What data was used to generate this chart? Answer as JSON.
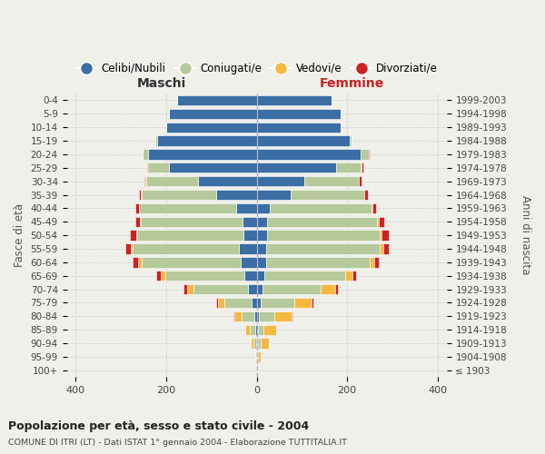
{
  "age_groups": [
    "100+",
    "95-99",
    "90-94",
    "85-89",
    "80-84",
    "75-79",
    "70-74",
    "65-69",
    "60-64",
    "55-59",
    "50-54",
    "45-49",
    "40-44",
    "35-39",
    "30-34",
    "25-29",
    "20-24",
    "15-19",
    "10-14",
    "5-9",
    "0-4"
  ],
  "birth_years": [
    "≤ 1903",
    "1904-1908",
    "1909-1913",
    "1914-1918",
    "1919-1923",
    "1924-1928",
    "1929-1933",
    "1934-1938",
    "1939-1943",
    "1944-1948",
    "1949-1953",
    "1954-1958",
    "1959-1963",
    "1964-1968",
    "1969-1973",
    "1974-1978",
    "1979-1983",
    "1984-1988",
    "1989-1993",
    "1994-1998",
    "1999-2003"
  ],
  "colors": {
    "celibi": "#3a6ea5",
    "coniugati": "#b5c99a",
    "vedovi": "#f5b942",
    "divorziati": "#cc2222"
  },
  "maschi": {
    "celibi": [
      0,
      1,
      2,
      4,
      6,
      12,
      20,
      28,
      35,
      40,
      30,
      32,
      45,
      90,
      130,
      195,
      240,
      220,
      200,
      195,
      175
    ],
    "coniugati": [
      0,
      1,
      6,
      12,
      28,
      60,
      120,
      175,
      220,
      235,
      235,
      225,
      215,
      165,
      115,
      45,
      12,
      4,
      0,
      0,
      0
    ],
    "vedovi": [
      0,
      2,
      5,
      10,
      15,
      14,
      14,
      9,
      7,
      4,
      2,
      2,
      1,
      1,
      1,
      1,
      0,
      0,
      0,
      0,
      0
    ],
    "divorziati": [
      0,
      0,
      0,
      0,
      2,
      4,
      7,
      10,
      12,
      12,
      14,
      9,
      8,
      5,
      3,
      2,
      1,
      0,
      0,
      0,
      0
    ]
  },
  "femmine": {
    "celibi": [
      0,
      1,
      2,
      3,
      4,
      8,
      12,
      16,
      20,
      20,
      22,
      22,
      28,
      75,
      105,
      175,
      230,
      205,
      185,
      185,
      165
    ],
    "coniugati": [
      0,
      1,
      6,
      12,
      35,
      75,
      130,
      180,
      230,
      252,
      250,
      245,
      225,
      162,
      120,
      55,
      18,
      5,
      0,
      0,
      0
    ],
    "vedovi": [
      2,
      6,
      18,
      28,
      38,
      38,
      32,
      16,
      10,
      8,
      5,
      3,
      2,
      1,
      1,
      1,
      0,
      0,
      0,
      0,
      0
    ],
    "divorziati": [
      0,
      0,
      0,
      0,
      2,
      5,
      5,
      8,
      10,
      12,
      16,
      12,
      10,
      8,
      5,
      5,
      2,
      0,
      0,
      0,
      0
    ]
  },
  "title": "Popolazione per età, sesso e stato civile - 2004",
  "subtitle": "COMUNE DI ITRI (LT) - Dati ISTAT 1° gennaio 2004 - Elaborazione TUTTITALIA.IT",
  "xlabel_left": "Maschi",
  "xlabel_right": "Femmine",
  "ylabel_left": "Fasce di età",
  "ylabel_right": "Anni di nascita",
  "legend_labels": [
    "Celibi/Nubili",
    "Coniugati/e",
    "Vedovi/e",
    "Divorziati/e"
  ],
  "xlim": 420,
  "background": "#f0f0eb"
}
